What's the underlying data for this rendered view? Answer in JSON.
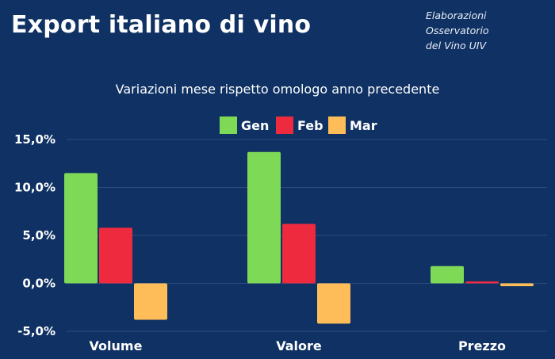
{
  "header": {
    "title": "Export italiano di vino",
    "source_line1": "Elaborazioni Osservatorio",
    "source_line2": "del Vino UIV"
  },
  "colors": {
    "background": "#0f3163",
    "gridline": "#2d4d7e"
  },
  "chart_data": {
    "type": "bar",
    "title": "Variazioni mese rispetto omologo anno precedente",
    "categories": [
      "Volume",
      "Valore",
      "Prezzo"
    ],
    "series": [
      {
        "name": "Gen",
        "color": "#7ed957",
        "values": [
          11.5,
          13.7,
          1.8
        ]
      },
      {
        "name": "Feb",
        "color": "#ee2a3e",
        "values": [
          5.8,
          6.2,
          0.2
        ]
      },
      {
        "name": "Mar",
        "color": "#ffbd59",
        "values": [
          -3.8,
          -4.2,
          -0.3
        ]
      }
    ],
    "yticks": [
      15,
      10,
      5,
      0,
      -5
    ],
    "ytick_labels": [
      "15,0%",
      "10,0%",
      "5,0%",
      "0,0%",
      "-5,0%"
    ],
    "ylim": [
      -5,
      15
    ],
    "grid": true,
    "legend_position": "top-center"
  }
}
